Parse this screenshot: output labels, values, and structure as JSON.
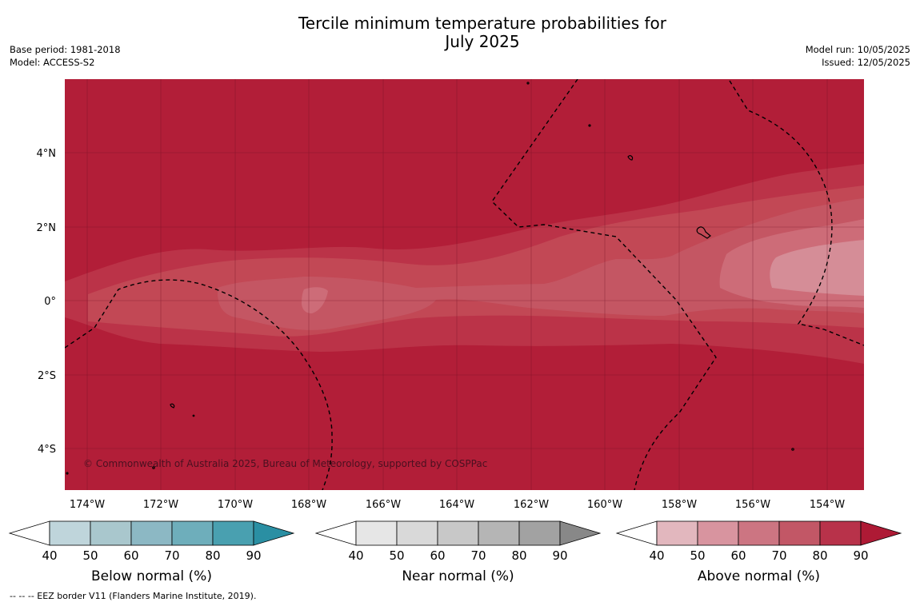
{
  "title": "Tercile minimum temperature probabilities for\nJuly 2025",
  "meta_left": {
    "base_period": "Base period: 1981-2018",
    "model": "Model: ACCESS-S2"
  },
  "meta_right": {
    "model_run": "Model run: 10/05/2025",
    "issued": "Issued: 12/05/2025"
  },
  "map": {
    "lat_ticks": [
      "4°N",
      "2°N",
      "0°",
      "2°S",
      "4°S"
    ],
    "lon_ticks": [
      "174°W",
      "172°W",
      "170°W",
      "168°W",
      "166°W",
      "164°W",
      "162°W",
      "160°W",
      "158°W",
      "156°W",
      "154°W"
    ],
    "copyright": "© Commonwealth of Australia 2025, Bureau of Meteorology, supported by COSPPac",
    "background_color": "#b21e38"
  },
  "colorbars": [
    {
      "title": "Below normal (%)",
      "ticks": [
        "40",
        "50",
        "60",
        "70",
        "80",
        "90"
      ],
      "colors": [
        "#ffffff",
        "#bfd5db",
        "#a9c7cd",
        "#8cb8c4",
        "#6eaebb",
        "#49a0b0",
        "#2a8fa3"
      ]
    },
    {
      "title": "Near normal (%)",
      "ticks": [
        "40",
        "50",
        "60",
        "70",
        "80",
        "90"
      ],
      "colors": [
        "#ffffff",
        "#e6e6e6",
        "#d9d9d9",
        "#c8c8c8",
        "#b5b5b5",
        "#a2a2a2",
        "#888888"
      ]
    },
    {
      "title": "Above normal (%)",
      "ticks": [
        "40",
        "50",
        "60",
        "70",
        "80",
        "90"
      ],
      "colors": [
        "#ffffff",
        "#e2b7be",
        "#d8949f",
        "#cc7582",
        "#c25766",
        "#b8324a",
        "#ae1a35"
      ]
    }
  ],
  "footnote": "--  --  -- EEZ border V11 (Flanders Marine Institute, 2019)."
}
